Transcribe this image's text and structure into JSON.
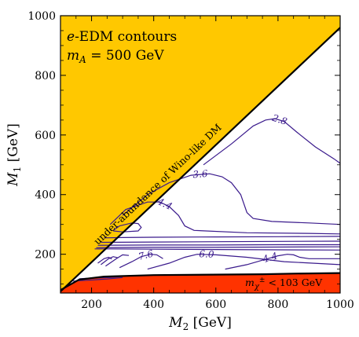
{
  "chart_data": {
    "type": "line",
    "xlabel": "M_2 [GeV]",
    "ylabel": "M_1 [GeV]",
    "xlim": [
      100,
      1000
    ],
    "ylim": [
      70,
      1000
    ],
    "x_ticks": [
      200,
      400,
      600,
      800,
      1000
    ],
    "y_ticks": [
      200,
      400,
      600,
      800,
      1000
    ],
    "x_tick_labels": [
      "200",
      "400",
      "600",
      "800",
      "1000"
    ],
    "y_tick_labels": [
      "200",
      "400",
      "600",
      "800",
      "1000"
    ],
    "grid": false,
    "annotation_line1": "e-EDM contours",
    "annotation_line2": "m_A = 500 GeV",
    "regions": [
      {
        "label": "under-abundance of Wino-like DM",
        "color": "#ffc800",
        "polygon": [
          [
            100,
            70
          ],
          [
            100,
            1000
          ],
          [
            1000,
            1000
          ],
          [
            1000,
            960
          ],
          [
            100,
            75
          ]
        ]
      },
      {
        "label": "m_χ± < 103 GeV",
        "color": "#ff3300",
        "polygon": [
          [
            100,
            70
          ],
          [
            100,
            80
          ],
          [
            160,
            115
          ],
          [
            240,
            125
          ],
          [
            400,
            130
          ],
          [
            750,
            133
          ],
          [
            850,
            135
          ],
          [
            1000,
            137
          ],
          [
            1000,
            70
          ]
        ]
      }
    ],
    "boundary_color": "#000000",
    "contour_color": "#3a1a8c",
    "contours": [
      {
        "label": "2.8",
        "points": [
          [
            560,
            500
          ],
          [
            650,
            570
          ],
          [
            720,
            630
          ],
          [
            760,
            650
          ],
          [
            790,
            655
          ],
          [
            820,
            645
          ],
          [
            860,
            610
          ],
          [
            920,
            560
          ],
          [
            980,
            520
          ],
          [
            1000,
            505
          ]
        ]
      },
      {
        "label": "3.6",
        "points": [
          [
            300,
            330
          ],
          [
            380,
            400
          ],
          [
            450,
            440
          ],
          [
            520,
            465
          ],
          [
            580,
            470
          ],
          [
            620,
            460
          ],
          [
            650,
            440
          ],
          [
            680,
            400
          ],
          [
            700,
            340
          ],
          [
            720,
            320
          ],
          [
            780,
            310
          ],
          [
            900,
            305
          ],
          [
            1000,
            300
          ]
        ]
      },
      {
        "label": "4.4",
        "points": [
          [
            260,
            300
          ],
          [
            310,
            350
          ],
          [
            380,
            375
          ],
          [
            420,
            375
          ],
          [
            450,
            360
          ],
          [
            480,
            330
          ],
          [
            500,
            295
          ],
          [
            530,
            280
          ],
          [
            700,
            272
          ],
          [
            900,
            270
          ],
          [
            1000,
            268
          ]
        ]
      },
      {
        "label": "",
        "points": [
          [
            270,
            280
          ],
          [
            290,
            295
          ],
          [
            330,
            305
          ],
          [
            350,
            303
          ],
          [
            360,
            290
          ],
          [
            350,
            278
          ],
          [
            300,
            275
          ],
          [
            270,
            278
          ]
        ]
      },
      {
        "label": "",
        "points": [
          [
            240,
            255
          ],
          [
            300,
            256
          ],
          [
            400,
            257
          ],
          [
            600,
            258
          ],
          [
            800,
            259
          ],
          [
            1000,
            260
          ]
        ]
      },
      {
        "label": "",
        "points": [
          [
            230,
            240
          ],
          [
            400,
            241
          ],
          [
            600,
            242
          ],
          [
            800,
            243
          ],
          [
            1000,
            244
          ]
        ]
      },
      {
        "label": "",
        "points": [
          [
            220,
            230
          ],
          [
            400,
            231
          ],
          [
            600,
            231
          ],
          [
            800,
            232
          ],
          [
            1000,
            232
          ]
        ]
      },
      {
        "label": "",
        "points": [
          [
            215,
            222
          ],
          [
            400,
            223
          ],
          [
            600,
            223
          ],
          [
            800,
            224
          ],
          [
            1000,
            225
          ]
        ]
      },
      {
        "label": "",
        "points": [
          [
            210,
            218
          ],
          [
            400,
            217
          ],
          [
            600,
            216
          ],
          [
            800,
            215
          ],
          [
            1000,
            214
          ]
        ]
      },
      {
        "label": "4.4",
        "points": [
          [
            630,
            150
          ],
          [
            700,
            165
          ],
          [
            750,
            180
          ],
          [
            800,
            195
          ],
          [
            830,
            200
          ],
          [
            850,
            198
          ],
          [
            870,
            190
          ],
          [
            900,
            185
          ],
          [
            1000,
            185
          ]
        ]
      },
      {
        "label": "6.0",
        "points": [
          [
            380,
            150
          ],
          [
            450,
            170
          ],
          [
            500,
            190
          ],
          [
            540,
            200
          ],
          [
            600,
            198
          ],
          [
            700,
            190
          ],
          [
            820,
            175
          ],
          [
            1000,
            165
          ]
        ]
      },
      {
        "label": "7.6",
        "points": [
          [
            290,
            155
          ],
          [
            330,
            175
          ],
          [
            360,
            192
          ],
          [
            390,
            200
          ],
          [
            410,
            198
          ],
          [
            430,
            185
          ]
        ]
      },
      {
        "label": "",
        "points": [
          [
            245,
            160
          ],
          [
            280,
            185
          ],
          [
            300,
            198
          ],
          [
            320,
            196
          ]
        ]
      },
      {
        "label": "",
        "points": [
          [
            230,
            165
          ],
          [
            255,
            185
          ],
          [
            270,
            192
          ],
          [
            285,
            188
          ]
        ]
      },
      {
        "label": "",
        "points": [
          [
            220,
            170
          ],
          [
            240,
            185
          ],
          [
            255,
            190
          ],
          [
            265,
            184
          ]
        ]
      },
      {
        "label": "",
        "points": [
          [
            160,
            118
          ],
          [
            200,
            120
          ],
          [
            260,
            122
          ],
          [
            320,
            128
          ],
          [
            400,
            130
          ]
        ]
      },
      {
        "label": "",
        "points": [
          [
            140,
            110
          ],
          [
            190,
            113
          ],
          [
            250,
            117
          ],
          [
            300,
            122
          ]
        ]
      }
    ]
  }
}
